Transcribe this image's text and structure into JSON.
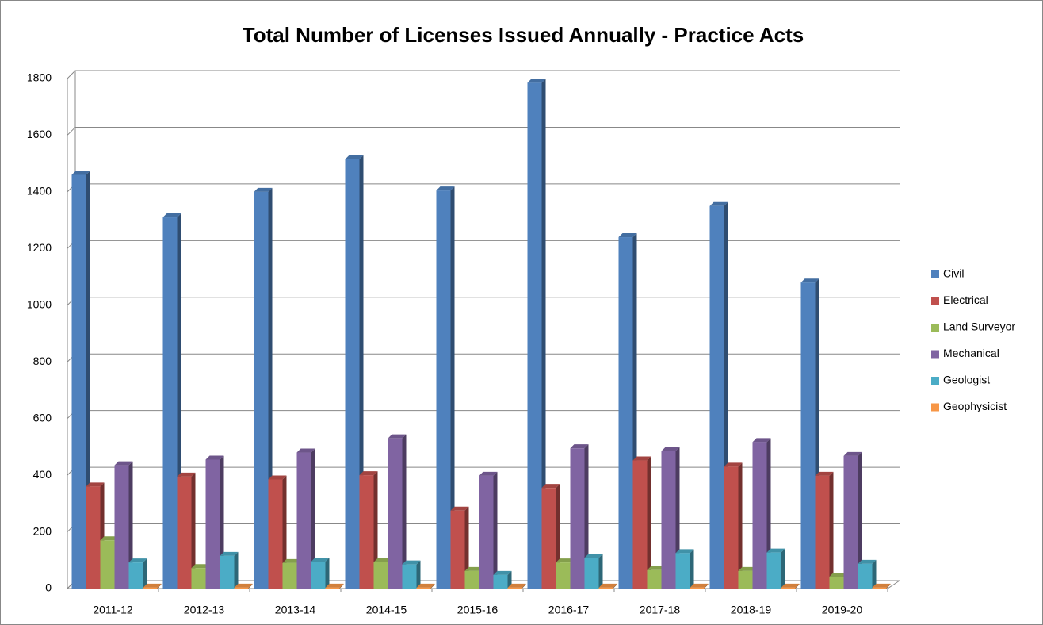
{
  "chart_data": {
    "type": "bar",
    "title": "Total Number of Licenses Issued Annually - Practice Acts",
    "categories": [
      "2011-12",
      "2012-13",
      "2013-14",
      "2014-15",
      "2015-16",
      "2016-17",
      "2017-18",
      "2018-19",
      "2019-20"
    ],
    "series": [
      {
        "name": "Civil",
        "color": "#4f81bd",
        "values": [
          1460,
          1310,
          1400,
          1515,
          1405,
          1785,
          1240,
          1350,
          1080
        ]
      },
      {
        "name": "Electrical",
        "color": "#c0504d",
        "values": [
          360,
          395,
          385,
          400,
          275,
          355,
          452,
          430,
          398
        ]
      },
      {
        "name": "Land Surveyor",
        "color": "#9bbb59",
        "values": [
          170,
          72,
          90,
          93,
          62,
          92,
          65,
          62,
          42
        ]
      },
      {
        "name": "Mechanical",
        "color": "#8064a2",
        "values": [
          435,
          455,
          480,
          530,
          398,
          495,
          485,
          517,
          468
        ]
      },
      {
        "name": "Geologist",
        "color": "#4bacc6",
        "values": [
          92,
          115,
          95,
          85,
          48,
          108,
          125,
          127,
          87
        ]
      },
      {
        "name": "Geophysicist",
        "color": "#f79646",
        "values": [
          3,
          3,
          3,
          3,
          3,
          3,
          3,
          3,
          3
        ]
      }
    ],
    "ylim": [
      0,
      1800
    ],
    "yticks": [
      0,
      200,
      400,
      600,
      800,
      1000,
      1200,
      1400,
      1600,
      1800
    ],
    "grid": true,
    "legend": "right"
  }
}
